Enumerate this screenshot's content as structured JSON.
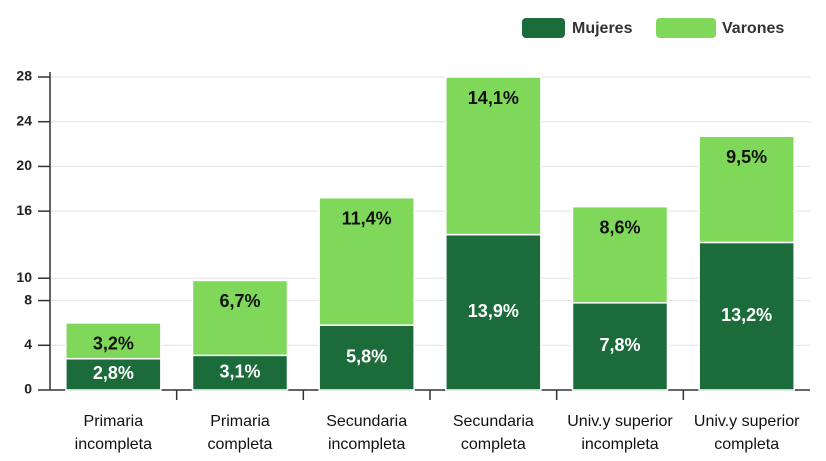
{
  "chart_data": {
    "type": "stacked_bar",
    "categories": [
      [
        "Primaria",
        "incompleta"
      ],
      [
        "Primaria",
        "completa"
      ],
      [
        "Secundaria",
        "incompleta"
      ],
      [
        "Secundaria",
        "completa"
      ],
      [
        "Univ.y superior",
        "incompleta"
      ],
      [
        "Univ.y superior",
        "completa"
      ]
    ],
    "series": [
      {
        "name": "Mujeres",
        "color": "#1b6b3b",
        "values": [
          2.8,
          3.1,
          5.8,
          13.9,
          7.8,
          13.2
        ],
        "value_labels": [
          "2,8%",
          "3,1%",
          "5,8%",
          "13,9%",
          "7,8%",
          "13,2%"
        ]
      },
      {
        "name": "Varones",
        "color": "#7fd85a",
        "values": [
          3.2,
          6.7,
          11.4,
          14.1,
          8.6,
          9.5
        ],
        "value_labels": [
          "3,2%",
          "6,7%",
          "11,4%",
          "14,1%",
          "8,6%",
          "9,5%"
        ]
      }
    ],
    "ylim": [
      0,
      28
    ],
    "yticks": [
      0,
      4,
      8,
      10,
      16,
      20,
      24,
      28
    ],
    "grid": true,
    "legend": "top-right"
  }
}
